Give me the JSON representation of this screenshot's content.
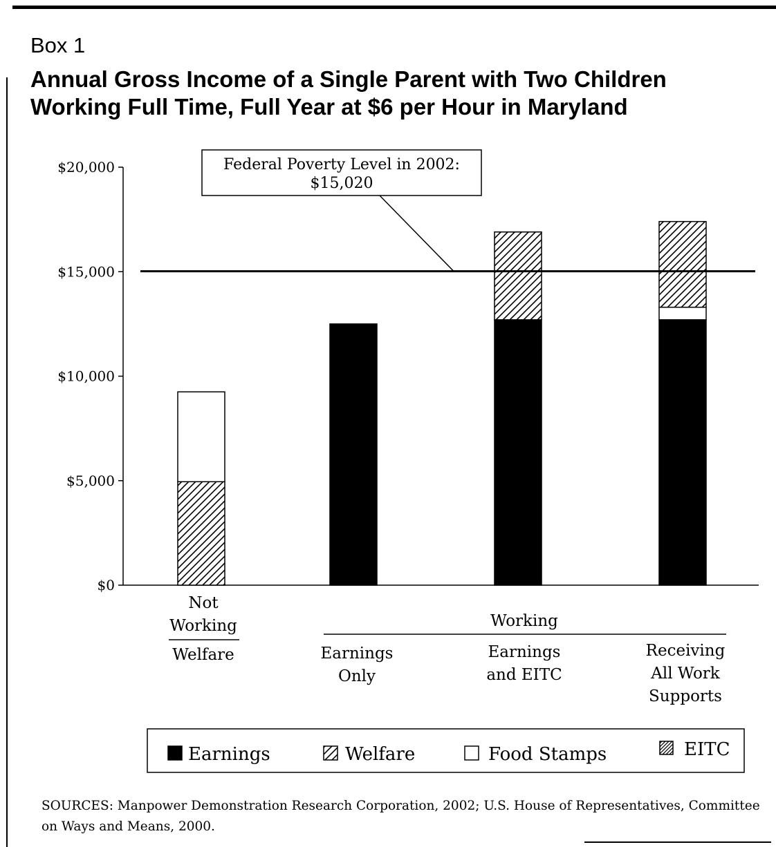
{
  "box_label": "Box 1",
  "title_line1": "Annual Gross Income of a Single Parent with Two Children",
  "title_line2": "Working Full Time, Full Year at $6 per Hour in Maryland",
  "sources": "SOURCES: Manpower Demonstration Research Corporation, 2002; U.S. House of Representatives, Committee on Ways and Means, 2000.",
  "chart_data": {
    "type": "bar",
    "stacked": true,
    "y_ticks": [
      "$0",
      "$5,000",
      "$10,000",
      "$15,000",
      "$20,000"
    ],
    "ylim": [
      0,
      20000
    ],
    "reference_line": {
      "value": 15020,
      "label_line1": "Federal Poverty Level in 2002:",
      "label_line2": "$15,020"
    },
    "groups": [
      {
        "label": [
          "Not",
          "Working"
        ]
      },
      {
        "label": [
          "Working"
        ]
      }
    ],
    "categories": [
      [
        "Welfare"
      ],
      [
        "Earnings",
        "Only"
      ],
      [
        "Earnings",
        "and EITC"
      ],
      [
        "Receiving",
        "All Work",
        "Supports"
      ]
    ],
    "series": [
      {
        "name": "Earnings",
        "fill": "solid",
        "values": [
          0,
          12500,
          12700,
          12700
        ]
      },
      {
        "name": "Welfare",
        "fill": "hatch",
        "values": [
          4950,
          0,
          0,
          0
        ]
      },
      {
        "name": "Food Stamps",
        "fill": "white",
        "values": [
          4300,
          0,
          0,
          600
        ]
      },
      {
        "name": "EITC",
        "fill": "hatch",
        "values": [
          0,
          0,
          4200,
          4100
        ]
      }
    ],
    "legend_position": "bottom",
    "grid": false
  }
}
